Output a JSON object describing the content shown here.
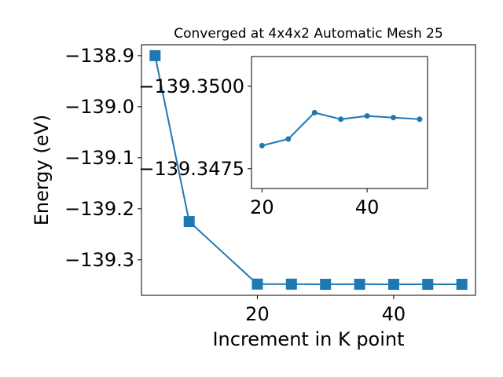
{
  "chart_data": [
    {
      "type": "line",
      "title": "Converged at 4x4x2 Automatic Mesh 25",
      "xlabel": "Increment in K point",
      "ylabel": "Energy (eV)",
      "xlim": [
        3,
        52
      ],
      "ylim": [
        -139.3695,
        -138.8787
      ],
      "x_ticks": [
        20,
        40
      ],
      "y_ticks": [
        -138.9,
        -139.0,
        -139.1,
        -139.2,
        -139.3
      ],
      "x_tick_labels": [
        "20",
        "40"
      ],
      "y_tick_labels": [
        "−138.9",
        "−139.0",
        "−139.1",
        "−139.2",
        "−139.3"
      ],
      "grid": false,
      "series": [
        {
          "color": "#1f77b4",
          "marker": "square",
          "x": [
            5,
            10,
            20,
            25,
            30,
            35,
            40,
            45,
            50
          ],
          "y": [
            -138.9,
            -139.225,
            -139.3475,
            -139.3476,
            -139.3479,
            -139.3478,
            -139.3479,
            -139.3479,
            -139.3479
          ]
        }
      ]
    },
    {
      "type": "line",
      "title": "",
      "xlabel": "",
      "ylabel": "",
      "xlim": [
        18,
        51.5
      ],
      "ylim": [
        -139.3469,
        -139.3509
      ],
      "x_ticks": [
        20,
        40
      ],
      "y_ticks": [
        -139.35,
        -139.3475
      ],
      "x_tick_labels": [
        "20",
        "40"
      ],
      "y_tick_labels": [
        "−139.3500",
        "−139.3475"
      ],
      "grid": false,
      "series": [
        {
          "color": "#1f77b4",
          "marker": "circle",
          "x": [
            20,
            25,
            30,
            35,
            40,
            45,
            50
          ],
          "y": [
            -139.3482,
            -139.3484,
            -139.3492,
            -139.349,
            -139.3491,
            -139.34905,
            -139.349
          ]
        }
      ]
    }
  ]
}
